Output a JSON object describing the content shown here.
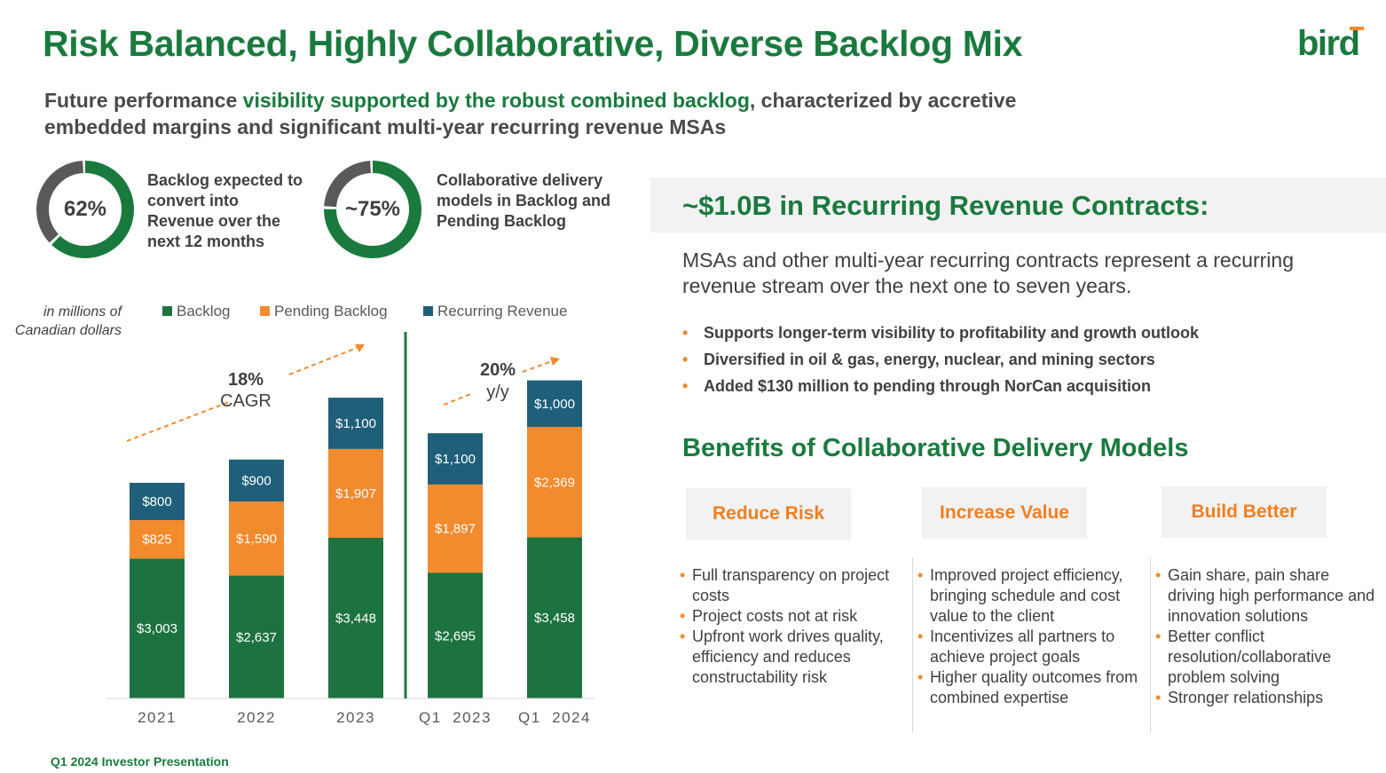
{
  "header": {
    "title": "Risk Balanced, Highly Collaborative, Diverse Backlog Mix",
    "logo_text": "bird",
    "subtitle_pre": "Future performance ",
    "subtitle_highlight": "visibility supported by the robust combined backlog",
    "subtitle_post": ", characterized by accretive embedded margins and significant multi-year recurring revenue MSAs"
  },
  "kpis": [
    {
      "value": "62%",
      "fraction": 0.62,
      "text": "Backlog expected to convert into Revenue over the next 12 months"
    },
    {
      "value": "~75%",
      "fraction": 0.75,
      "text": "Collaborative delivery models in Backlog and Pending Backlog"
    }
  ],
  "colors": {
    "green": "#1a7a3e",
    "bar_green": "#1d7340",
    "orange": "#f28a2e",
    "teal": "#1f5f7a",
    "grey_ring": "#595959",
    "orange_text": "#f07f22"
  },
  "chart_data": {
    "type": "bar",
    "stacked": true,
    "unit_note": "in millions of Canadian dollars",
    "categories": [
      "2021",
      "2022",
      "2023",
      "Q1  2023",
      "Q1  2024"
    ],
    "series": [
      {
        "name": "Backlog",
        "values": [
          3003,
          2637,
          3448,
          2695,
          3458
        ],
        "labels": [
          "$3,003",
          "$2,637",
          "$3,448",
          "$2,695",
          "$3,458"
        ]
      },
      {
        "name": "Pending Backlog",
        "values": [
          825,
          1590,
          1907,
          1897,
          2369
        ],
        "labels": [
          "$825",
          "$1,590",
          "$1,907",
          "$1,897",
          "$2,369"
        ]
      },
      {
        "name": "Recurring Revenue",
        "values": [
          800,
          900,
          1100,
          1100,
          1000
        ],
        "labels": [
          "$800",
          "$900",
          "$1,100",
          "$1,100",
          "$1,000"
        ]
      }
    ],
    "ylim": [
      0,
      7200
    ],
    "annotations": [
      {
        "line1": "18%",
        "line2": "CAGR"
      },
      {
        "line1": "20%",
        "line2": "y/y"
      }
    ],
    "divider_after_index": 2
  },
  "recurring": {
    "title": "~$1.0B in Recurring Revenue Contracts:",
    "description": "MSAs and other multi-year recurring contracts represent a recurring revenue stream over the next one to seven years.",
    "bullets": [
      "Supports longer-term visibility to profitability and growth outlook",
      "Diversified in oil & gas, energy, nuclear, and mining sectors",
      "Added $130 million to pending through NorCan acquisition"
    ]
  },
  "benefits": {
    "title": "Benefits of Collaborative Delivery Models",
    "columns": [
      {
        "heading": "Reduce Risk",
        "items": [
          "Full transparency on project costs",
          "Project costs not at risk",
          "Upfront work drives quality, efficiency and reduces constructability risk"
        ]
      },
      {
        "heading": "Increase Value",
        "items": [
          "Improved project efficiency, bringing schedule and cost value to the client",
          "Incentivizes all partners to achieve project goals",
          "Higher quality outcomes from combined expertise"
        ]
      },
      {
        "heading": "Build Better",
        "items": [
          "Gain share, pain share driving high performance and  innovation solutions",
          "Better conflict resolution/collaborative problem solving",
          "Stronger relationships"
        ]
      }
    ]
  },
  "footer": {
    "text": "Q1 2024 Investor Presentation"
  }
}
